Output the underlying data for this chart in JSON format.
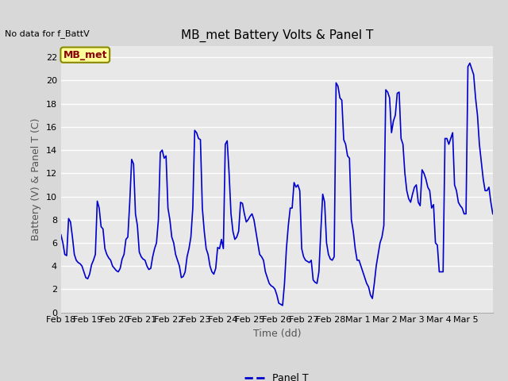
{
  "title": "MB_met Battery Volts & Panel T",
  "no_data_text": "No data for f_BattV",
  "ylabel": "Battery (V) & Panel T (C)",
  "xlabel": "Time (dd)",
  "legend_label": "Panel T",
  "legend_label_batt": "MB_met",
  "ylim": [
    0,
    23
  ],
  "yticks": [
    0,
    2,
    4,
    6,
    8,
    10,
    12,
    14,
    16,
    18,
    20,
    22
  ],
  "xtick_labels": [
    "Feb 18",
    "Feb 19",
    "Feb 20",
    "Feb 21",
    "Feb 22",
    "Feb 23",
    "Feb 24",
    "Feb 25",
    "Feb 26",
    "Feb 27",
    "Feb 28",
    "Mar 1",
    "Mar 2",
    "Mar 3",
    "Mar 4",
    "Mar 5"
  ],
  "line_color": "#0000cc",
  "line_width": 1.2,
  "background_color": "#d8d8d8",
  "plot_bg_color": "#e8e8e8",
  "title_fontsize": 11,
  "axis_fontsize": 9,
  "tick_fontsize": 8,
  "legend_box_facecolor": "#ffff99",
  "legend_box_edgecolor": "#888800",
  "legend_text_color": "#880000",
  "grid_color": "#ffffff",
  "panel_t_values": [
    6.7,
    6.0,
    5.0,
    4.9,
    8.1,
    7.8,
    6.5,
    5.0,
    4.5,
    4.3,
    4.2,
    4.0,
    3.5,
    3.0,
    2.9,
    3.3,
    4.1,
    4.5,
    5.0,
    9.6,
    9.0,
    7.4,
    7.2,
    5.5,
    5.0,
    4.7,
    4.5,
    4.0,
    3.8,
    3.6,
    3.5,
    3.8,
    4.6,
    5.0,
    6.3,
    6.5,
    9.5,
    13.2,
    12.8,
    8.5,
    7.5,
    5.2,
    4.8,
    4.6,
    4.5,
    4.0,
    3.7,
    3.8,
    4.8,
    5.5,
    6.0,
    8.0,
    13.8,
    14.0,
    13.3,
    13.5,
    9.0,
    8.0,
    6.5,
    6.0,
    5.0,
    4.5,
    4.0,
    3.0,
    3.1,
    3.5,
    4.8,
    5.5,
    6.5,
    9.0,
    15.7,
    15.5,
    15.0,
    14.9,
    9.0,
    7.0,
    5.5,
    5.0,
    4.0,
    3.5,
    3.3,
    3.8,
    5.6,
    5.5,
    6.3,
    5.5,
    14.5,
    14.8,
    12.0,
    8.5,
    7.0,
    6.3,
    6.5,
    7.0,
    9.5,
    9.4,
    8.5,
    7.8,
    8.0,
    8.3,
    8.5,
    8.0,
    7.0,
    6.0,
    5.0,
    4.8,
    4.5,
    3.5,
    3.0,
    2.5,
    2.3,
    2.2,
    2.0,
    1.5,
    0.8,
    0.7,
    0.6,
    2.5,
    5.5,
    7.5,
    9.0,
    9.0,
    11.2,
    10.8,
    11.0,
    10.5,
    5.5,
    4.8,
    4.5,
    4.4,
    4.3,
    4.5,
    2.8,
    2.6,
    2.5,
    3.5,
    7.0,
    10.2,
    9.5,
    6.0,
    5.0,
    4.6,
    4.5,
    4.8,
    19.8,
    19.5,
    18.5,
    18.3,
    14.9,
    14.5,
    13.5,
    13.3,
    8.0,
    7.0,
    5.5,
    4.5,
    4.5,
    4.0,
    3.5,
    3.0,
    2.5,
    2.2,
    1.5,
    1.2,
    2.5,
    4.0,
    5.0,
    6.0,
    6.5,
    7.5,
    19.2,
    19.0,
    18.5,
    15.5,
    16.5,
    17.0,
    18.9,
    19.0,
    15.0,
    14.5,
    12.0,
    10.5,
    9.8,
    9.5,
    10.2,
    10.8,
    11.0,
    9.5,
    9.2,
    12.3,
    12.0,
    11.5,
    10.8,
    10.5,
    9.0,
    9.3,
    6.0,
    5.8,
    3.5,
    3.5,
    3.5,
    15.0,
    15.0,
    14.5,
    15.0,
    15.5,
    11.0,
    10.5,
    9.5,
    9.2,
    9.0,
    8.5,
    8.5,
    21.2,
    21.5,
    21.0,
    20.5,
    18.5,
    17.0,
    14.5,
    13.0,
    11.5,
    10.5,
    10.5,
    10.8,
    9.5,
    8.5
  ]
}
